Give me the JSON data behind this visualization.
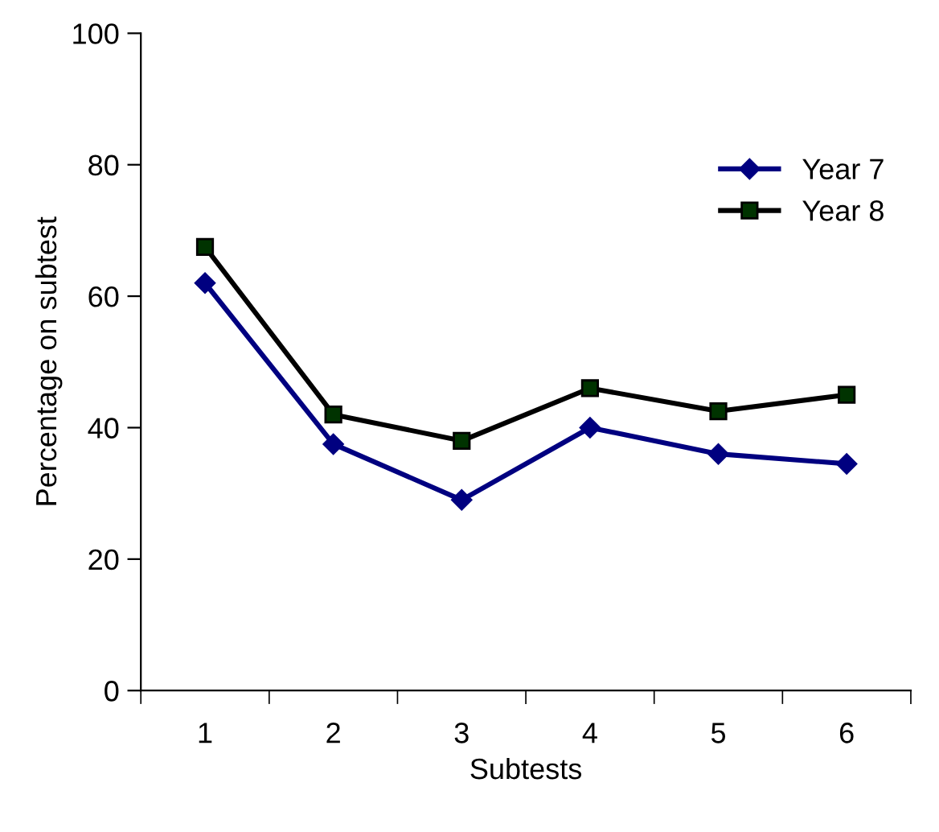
{
  "chart_data": {
    "type": "line",
    "xlabel": "Subtests",
    "ylabel": "Percentage on subtest",
    "categories": [
      "1",
      "2",
      "3",
      "4",
      "5",
      "6"
    ],
    "series": [
      {
        "name": "Year 7",
        "color": "#000080",
        "marker": "diamond",
        "values": [
          62,
          37.5,
          29,
          40,
          36,
          34.5
        ]
      },
      {
        "name": "Year 8",
        "color": "#000000",
        "marker": "square",
        "values": [
          67.5,
          42,
          38,
          46,
          42.5,
          45
        ]
      }
    ],
    "ylim": [
      0,
      100
    ],
    "yticks": [
      0,
      20,
      40,
      60,
      80,
      100
    ],
    "grid": false,
    "legend": "top right"
  }
}
